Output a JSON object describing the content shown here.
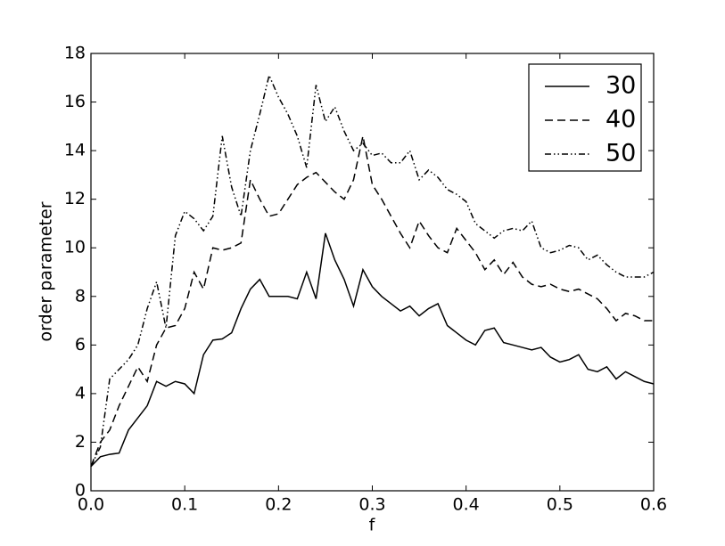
{
  "chart_data": {
    "type": "line",
    "xlabel": "f",
    "ylabel": "order parameter",
    "x": [
      0,
      0.01,
      0.02,
      0.03,
      0.04,
      0.05,
      0.06,
      0.07,
      0.08,
      0.09,
      0.1,
      0.11,
      0.12,
      0.13,
      0.14,
      0.15,
      0.16,
      0.17,
      0.18,
      0.19,
      0.2,
      0.21,
      0.22,
      0.23,
      0.24,
      0.25,
      0.26,
      0.27,
      0.28,
      0.29,
      0.3,
      0.31,
      0.32,
      0.33,
      0.34,
      0.35,
      0.36,
      0.37,
      0.38,
      0.39,
      0.4,
      0.41,
      0.42,
      0.43,
      0.44,
      0.45,
      0.46,
      0.47,
      0.48,
      0.49,
      0.5,
      0.51,
      0.52,
      0.53,
      0.54,
      0.55,
      0.56,
      0.57,
      0.58,
      0.59,
      0.6
    ],
    "series": [
      {
        "name": "30",
        "color": "#000000",
        "linestyle": "solid",
        "values": [
          1.0,
          1.4,
          1.5,
          1.55,
          2.5,
          3.0,
          3.5,
          4.5,
          4.3,
          4.5,
          4.4,
          4.0,
          5.6,
          6.2,
          6.25,
          6.5,
          7.5,
          8.3,
          8.7,
          8.0,
          8.0,
          8.0,
          7.9,
          9.0,
          7.9,
          10.6,
          9.5,
          8.7,
          7.6,
          9.1,
          8.4,
          8.0,
          7.7,
          7.4,
          7.6,
          7.2,
          7.5,
          7.7,
          6.8,
          6.5,
          6.2,
          6.0,
          6.6,
          6.7,
          6.1,
          6.0,
          5.9,
          5.8,
          5.9,
          5.5,
          5.3,
          5.4,
          5.6,
          5.0,
          4.9,
          5.1,
          4.6,
          4.9,
          4.7,
          4.5,
          4.4
        ]
      },
      {
        "name": "40",
        "color": "#000000",
        "linestyle": "dashed",
        "values": [
          1.0,
          2.0,
          2.5,
          3.5,
          4.3,
          5.1,
          4.5,
          6.0,
          6.7,
          6.8,
          7.5,
          9.0,
          8.3,
          10.0,
          9.9,
          10.0,
          10.2,
          12.8,
          12.0,
          11.3,
          11.4,
          12.0,
          12.6,
          12.9,
          13.1,
          12.7,
          12.3,
          12.0,
          12.8,
          14.6,
          12.6,
          12.0,
          11.3,
          10.6,
          10.0,
          11.1,
          10.5,
          10.0,
          9.8,
          10.8,
          10.3,
          9.8,
          9.1,
          9.5,
          8.9,
          9.4,
          8.8,
          8.5,
          8.4,
          8.5,
          8.3,
          8.2,
          8.3,
          8.1,
          7.9,
          7.5,
          7.0,
          7.3,
          7.2,
          7.0,
          7.0
        ]
      },
      {
        "name": "50",
        "color": "#000000",
        "linestyle": "dashdot",
        "values": [
          1.0,
          1.8,
          4.6,
          5.0,
          5.4,
          6.0,
          7.5,
          8.6,
          6.7,
          10.5,
          11.5,
          11.2,
          10.7,
          11.3,
          14.6,
          12.5,
          11.3,
          14.0,
          15.5,
          17.1,
          16.2,
          15.5,
          14.6,
          13.3,
          16.7,
          15.2,
          15.8,
          14.8,
          14.0,
          14.3,
          13.8,
          13.9,
          13.5,
          13.5,
          14.0,
          12.8,
          13.2,
          12.9,
          12.4,
          12.2,
          11.9,
          11.0,
          10.7,
          10.4,
          10.7,
          10.8,
          10.7,
          11.1,
          10.0,
          9.8,
          9.9,
          10.1,
          10.0,
          9.5,
          9.7,
          9.3,
          9.0,
          8.8,
          8.8,
          8.8,
          9.0
        ]
      }
    ],
    "xlim": [
      0,
      0.6
    ],
    "xticks": [
      {
        "value": 0,
        "label": "0.0"
      },
      0.1,
      0.2,
      0.3,
      0.4,
      0.5,
      0.6
    ],
    "ylim": [
      0,
      18
    ],
    "yticks": [
      0,
      2,
      4,
      6,
      8,
      10,
      12,
      14,
      16,
      18
    ],
    "grid": false,
    "legend": "upper right"
  }
}
